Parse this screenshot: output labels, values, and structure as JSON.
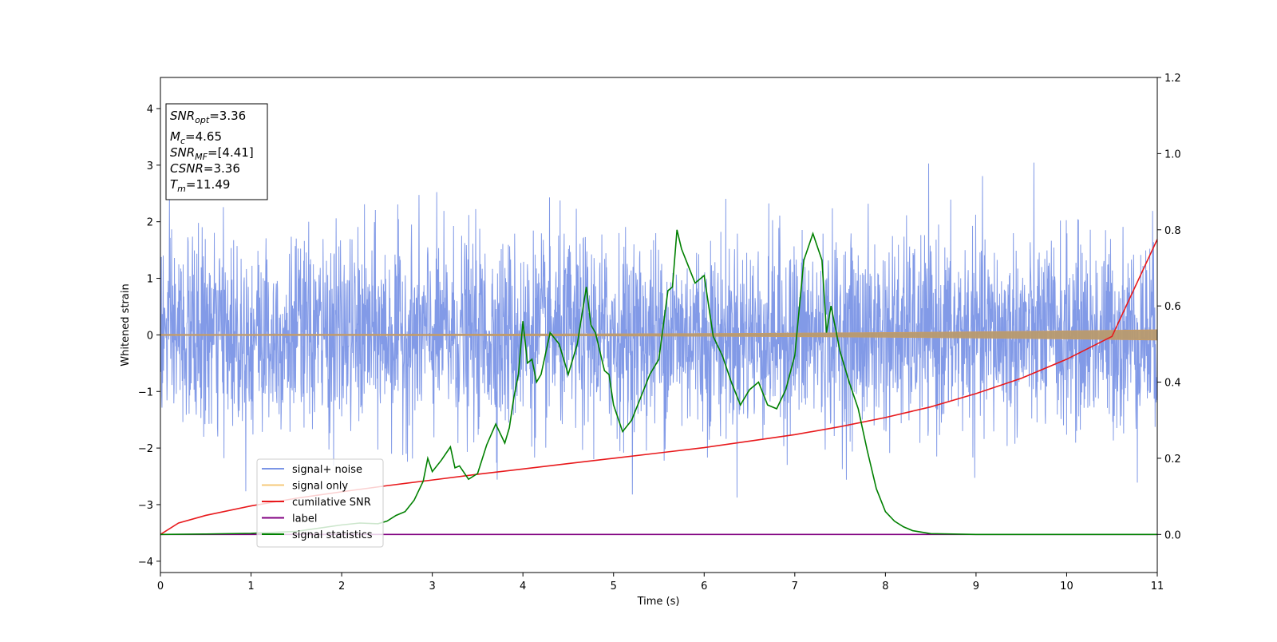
{
  "chart_data": {
    "type": "line",
    "xlabel": "Time (s)",
    "ylabel": "Whitened strain",
    "xlim": [
      0,
      11
    ],
    "ylim": [
      -4.2,
      4.55
    ],
    "y2lim": [
      -0.1,
      1.2
    ],
    "x_ticks": [
      0,
      1,
      2,
      3,
      4,
      5,
      6,
      7,
      8,
      9,
      10,
      11
    ],
    "y_ticks": [
      -4,
      -3,
      -2,
      -1,
      0,
      1,
      2,
      3,
      4
    ],
    "y2_ticks": [
      0.0,
      0.2,
      0.4,
      0.6,
      0.8,
      1.0,
      1.2
    ],
    "grid": false,
    "legend_position": "lower-left",
    "annotation": {
      "lines": [
        {
          "name": "SNR",
          "sub": "opt",
          "value": "=3.36"
        },
        {
          "name": "M",
          "sub": "c",
          "value": "=4.65"
        },
        {
          "name": "SNR",
          "sub": "MF",
          "value": "=[4.41]"
        },
        {
          "name": "CSNR",
          "sub": "",
          "value": "=3.36"
        },
        {
          "name": "T",
          "sub": "m",
          "value": "=11.49"
        }
      ]
    },
    "series": [
      {
        "name": "signal+ noise",
        "color": "#7b95e6",
        "axis": "left",
        "description_kind": "noise",
        "typical_range": [
          -2.0,
          2.0
        ],
        "peak_range": [
          -3.7,
          3.3
        ]
      },
      {
        "name": "signal only",
        "color": "#f5c97a",
        "axis": "left",
        "description_kind": "chirp",
        "amplitude_start": 0.01,
        "amplitude_end": 0.09
      },
      {
        "name": "cumilative SNR",
        "color": "#e8191c",
        "axis": "right",
        "x": [
          0,
          0.2,
          0.5,
          1,
          1.5,
          2,
          2.5,
          3,
          3.5,
          4,
          4.5,
          5,
          5.5,
          6,
          6.5,
          7,
          7.5,
          8,
          8.5,
          9,
          9.5,
          10,
          10.5,
          11
        ],
        "y": [
          0.0,
          0.03,
          0.05,
          0.075,
          0.095,
          0.112,
          0.128,
          0.143,
          0.158,
          0.172,
          0.186,
          0.2,
          0.214,
          0.228,
          0.245,
          0.262,
          0.283,
          0.307,
          0.335,
          0.37,
          0.41,
          0.46,
          0.52,
          0.775
        ]
      },
      {
        "name": "label",
        "color": "#800080",
        "axis": "right",
        "x": [
          0,
          11
        ],
        "y": [
          0,
          0
        ]
      },
      {
        "name": "signal statistics",
        "color": "#008000",
        "axis": "right",
        "x": [
          0,
          0.5,
          1,
          1.5,
          2,
          2.2,
          2.4,
          2.5,
          2.6,
          2.7,
          2.8,
          2.9,
          2.95,
          3.0,
          3.1,
          3.2,
          3.25,
          3.3,
          3.4,
          3.5,
          3.6,
          3.7,
          3.8,
          3.85,
          3.9,
          3.95,
          4.0,
          4.05,
          4.1,
          4.15,
          4.2,
          4.3,
          4.4,
          4.5,
          4.6,
          4.7,
          4.75,
          4.8,
          4.9,
          4.95,
          5.0,
          5.1,
          5.2,
          5.3,
          5.4,
          5.5,
          5.6,
          5.65,
          5.7,
          5.75,
          5.8,
          5.9,
          6.0,
          6.05,
          6.1,
          6.2,
          6.3,
          6.4,
          6.5,
          6.6,
          6.7,
          6.8,
          6.9,
          7.0,
          7.1,
          7.2,
          7.3,
          7.35,
          7.4,
          7.5,
          7.6,
          7.7,
          7.8,
          7.9,
          8.0,
          8.1,
          8.2,
          8.3,
          8.5,
          9,
          10,
          11
        ],
        "y": [
          0.0,
          0.001,
          0.003,
          0.008,
          0.025,
          0.03,
          0.028,
          0.035,
          0.05,
          0.06,
          0.09,
          0.14,
          0.2,
          0.165,
          0.195,
          0.23,
          0.175,
          0.18,
          0.145,
          0.16,
          0.235,
          0.29,
          0.24,
          0.28,
          0.36,
          0.42,
          0.56,
          0.45,
          0.46,
          0.4,
          0.42,
          0.53,
          0.5,
          0.42,
          0.5,
          0.65,
          0.55,
          0.53,
          0.43,
          0.42,
          0.34,
          0.27,
          0.3,
          0.36,
          0.42,
          0.46,
          0.64,
          0.65,
          0.8,
          0.75,
          0.72,
          0.66,
          0.68,
          0.6,
          0.52,
          0.47,
          0.4,
          0.34,
          0.38,
          0.4,
          0.34,
          0.33,
          0.38,
          0.47,
          0.72,
          0.79,
          0.72,
          0.53,
          0.6,
          0.48,
          0.4,
          0.33,
          0.22,
          0.12,
          0.06,
          0.035,
          0.02,
          0.01,
          0.002,
          0.0,
          0.0,
          0.0
        ]
      }
    ]
  }
}
